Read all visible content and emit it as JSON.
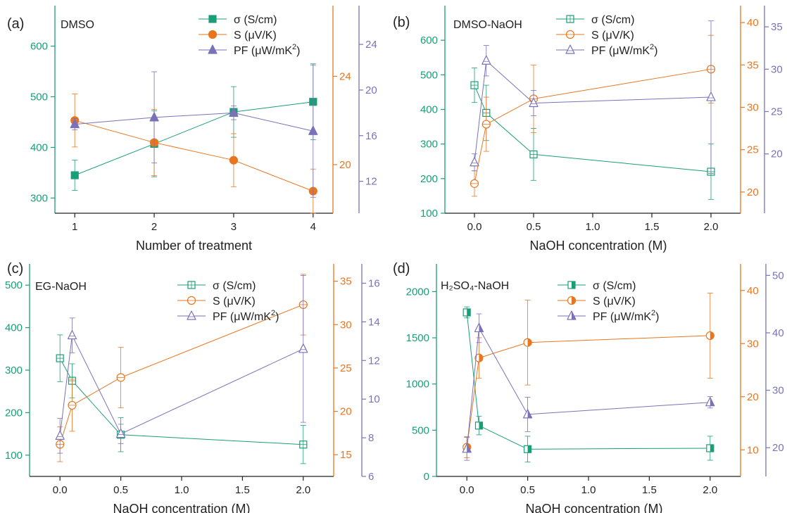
{
  "colors": {
    "sigma": "#1a9e77",
    "seebeck": "#e9761f",
    "pf": "#7a72b8",
    "axis": "#222222"
  },
  "chart_data": [
    {
      "id": "a",
      "type": "line",
      "panel_label": "(a)",
      "title": "DMSO",
      "xlabel": "Number of treatment",
      "x_ticks": [
        "1",
        "2",
        "3",
        "4"
      ],
      "xlim": [
        0.75,
        4.25
      ],
      "filled": true,
      "axes": {
        "sigma": {
          "range": [
            270,
            680
          ],
          "ticks": [
            300,
            400,
            500,
            600
          ],
          "labels": [
            "300",
            "400",
            "500",
            "600"
          ]
        },
        "seebeck": {
          "range": [
            17.8,
            27.2
          ],
          "ticks": [
            20,
            24
          ],
          "labels": [
            "20",
            "24"
          ]
        },
        "pf": {
          "range": [
            9.2,
            27.4
          ],
          "ticks": [
            12,
            16,
            20,
            24
          ],
          "labels": [
            "12",
            "16",
            "20",
            "24"
          ]
        }
      },
      "series": [
        {
          "key": "sigma",
          "name": "σ (S/cm)",
          "marker": "square",
          "fill": "filled",
          "x": [
            1,
            2,
            3,
            4
          ],
          "y": [
            345,
            407,
            470,
            490
          ],
          "err": [
            30,
            65,
            50,
            75
          ]
        },
        {
          "key": "seebeck",
          "name": "S (μV/K)",
          "marker": "circle",
          "fill": "filled",
          "x": [
            1,
            2,
            3,
            4
          ],
          "y": [
            22.0,
            21.0,
            20.2,
            18.8
          ],
          "err": [
            1.2,
            1.5,
            1.2,
            1.0
          ]
        },
        {
          "key": "pf",
          "name": "PF (μW/mK²)",
          "marker": "triangle",
          "fill": "filled",
          "x": [
            1,
            2,
            3,
            4
          ],
          "y": [
            17.0,
            17.6,
            18.0,
            16.4
          ],
          "err": [
            0.5,
            4.0,
            0.6,
            5.8
          ]
        }
      ],
      "legend": {
        "labels": [
          "σ (S/cm)",
          "S (μV/K)",
          "PF (μW/mK"
        ],
        "superscript": "2",
        "suffix": ")"
      }
    },
    {
      "id": "b",
      "type": "line",
      "panel_label": "(b)",
      "title": "DMSO-NaOH",
      "xlabel": "NaOH concentration (M)",
      "x_ticks": [
        "0.0",
        "0.5",
        "1.0",
        "1.5",
        "2.0"
      ],
      "xlim": [
        -0.25,
        2.25
      ],
      "filled": false,
      "axes": {
        "sigma": {
          "range": [
            100,
            700
          ],
          "ticks": [
            100,
            200,
            300,
            400,
            500,
            600
          ],
          "labels": [
            "100",
            "200",
            "300",
            "400",
            "500",
            "600"
          ]
        },
        "seebeck": {
          "range": [
            17.5,
            42
          ],
          "ticks": [
            20,
            25,
            30,
            35,
            40
          ],
          "labels": [
            "20",
            "25",
            "30",
            "35",
            "40"
          ]
        },
        "pf": {
          "range": [
            13,
            37.5
          ],
          "ticks": [
            20,
            25,
            30,
            35
          ],
          "labels": [
            "20",
            "25",
            "30",
            "35"
          ]
        }
      },
      "series": [
        {
          "key": "sigma",
          "name": "σ (S/cm)",
          "marker": "square",
          "fill": "open",
          "x": [
            0,
            0.1,
            0.5,
            2.0
          ],
          "y": [
            470,
            390,
            270,
            220
          ],
          "err": [
            50,
            80,
            75,
            80
          ]
        },
        {
          "key": "seebeck",
          "name": "S (μV/K)",
          "marker": "circle",
          "fill": "open",
          "x": [
            0,
            0.1,
            0.5,
            2.0
          ],
          "y": [
            21,
            28,
            31,
            34.5
          ],
          "err": [
            1.5,
            3.2,
            4,
            4
          ]
        },
        {
          "key": "pf",
          "name": "PF (μW/mK²)",
          "marker": "triangle",
          "fill": "open",
          "x": [
            0,
            0.1,
            0.5,
            2.0
          ],
          "y": [
            19,
            31,
            26,
            26.7
          ],
          "err": [
            1,
            1.8,
            1.5,
            9
          ]
        }
      ],
      "legend": {
        "labels": [
          "σ (S/cm)",
          "S (μV/K)",
          "PF (μW/mK"
        ],
        "superscript": "2",
        "suffix": ")"
      }
    },
    {
      "id": "c",
      "type": "line",
      "panel_label": "(c)",
      "title": "EG-NaOH",
      "xlabel": "NaOH concentration (M)",
      "x_ticks": [
        "0.0",
        "0.5",
        "1.0",
        "1.5",
        "2.0"
      ],
      "xlim": [
        -0.25,
        2.25
      ],
      "filled": false,
      "axes": {
        "sigma": {
          "range": [
            50,
            550
          ],
          "ticks": [
            100,
            200,
            300,
            400,
            500
          ],
          "labels": [
            "100",
            "200",
            "300",
            "400",
            "500"
          ]
        },
        "seebeck": {
          "range": [
            12.5,
            37
          ],
          "ticks": [
            15,
            20,
            25,
            30,
            35
          ],
          "labels": [
            "15",
            "20",
            "25",
            "30",
            "35"
          ]
        },
        "pf": {
          "range": [
            6,
            17
          ],
          "ticks": [
            6,
            8,
            10,
            12,
            14,
            16
          ],
          "labels": [
            "6",
            "8",
            "10",
            "12",
            "14",
            "16"
          ]
        }
      },
      "series": [
        {
          "key": "sigma",
          "name": "σ (S/cm)",
          "marker": "square",
          "fill": "open",
          "x": [
            0,
            0.1,
            0.5,
            2.0
          ],
          "y": [
            328,
            275,
            148,
            125
          ],
          "err": [
            55,
            40,
            40,
            45
          ]
        },
        {
          "key": "seebeck",
          "name": "S (μV/K)",
          "marker": "circle",
          "fill": "open",
          "x": [
            0,
            0.1,
            0.5,
            2.0
          ],
          "y": [
            16.2,
            20.7,
            23.9,
            32.3
          ],
          "err": [
            2,
            3,
            3.5,
            3.5
          ]
        },
        {
          "key": "pf",
          "name": "PF (μW/mK²)",
          "marker": "triangle",
          "fill": "open",
          "x": [
            0,
            0.1,
            0.5,
            2.0
          ],
          "y": [
            8.1,
            13.3,
            8.2,
            12.6
          ],
          "err": [
            0.9,
            0.9,
            0.5,
            3.8
          ]
        }
      ],
      "legend": {
        "labels": [
          "σ (S/cm)",
          "S (μV/K)",
          "PF (μW/mK"
        ],
        "superscript": "2",
        "suffix": ")"
      }
    },
    {
      "id": "d",
      "type": "line",
      "panel_label": "(d)",
      "title": "H₂SO₄-NaOH",
      "xlabel": "NaOH concentration (M)",
      "x_ticks": [
        "0.0",
        "0.5",
        "1.0",
        "1.5",
        "2.0"
      ],
      "xlim": [
        -0.25,
        2.25
      ],
      "filled": "half",
      "axes": {
        "sigma": {
          "range": [
            0,
            2300
          ],
          "ticks": [
            0,
            500,
            1000,
            1500,
            2000
          ],
          "labels": [
            "0",
            "500",
            "1000",
            "1500",
            "2000"
          ]
        },
        "seebeck": {
          "range": [
            5,
            45
          ],
          "ticks": [
            10,
            20,
            30,
            40
          ],
          "labels": [
            "10",
            "20",
            "30",
            "40"
          ]
        },
        "pf": {
          "range": [
            15,
            52
          ],
          "ticks": [
            20,
            30,
            40,
            50
          ],
          "labels": [
            "20",
            "30",
            "40",
            "50"
          ]
        }
      },
      "series": [
        {
          "key": "sigma",
          "name": "σ (S/cm)",
          "marker": "square",
          "fill": "half",
          "x": [
            0,
            0.1,
            0.5,
            2.0
          ],
          "y": [
            1775,
            550,
            295,
            305
          ],
          "err": [
            60,
            100,
            140,
            130
          ]
        },
        {
          "key": "seebeck",
          "name": "S (μV/K)",
          "marker": "circle",
          "fill": "half",
          "x": [
            0,
            0.1,
            0.5,
            2.0
          ],
          "y": [
            10.5,
            27.3,
            30.2,
            31.5
          ],
          "err": [
            2,
            3.8,
            8,
            8
          ]
        },
        {
          "key": "pf",
          "name": "PF (μW/mK²)",
          "marker": "triangle",
          "fill": "half",
          "x": [
            0,
            0.1,
            0.5,
            2.0
          ],
          "y": [
            19.8,
            40.8,
            25.8,
            27.9
          ],
          "err": [
            2,
            2.5,
            3,
            1
          ]
        }
      ],
      "legend": {
        "labels": [
          "σ (S/cm)",
          "S (μV/K)",
          "PF (μW/mK"
        ],
        "superscript": "2",
        "suffix": ")"
      }
    }
  ]
}
